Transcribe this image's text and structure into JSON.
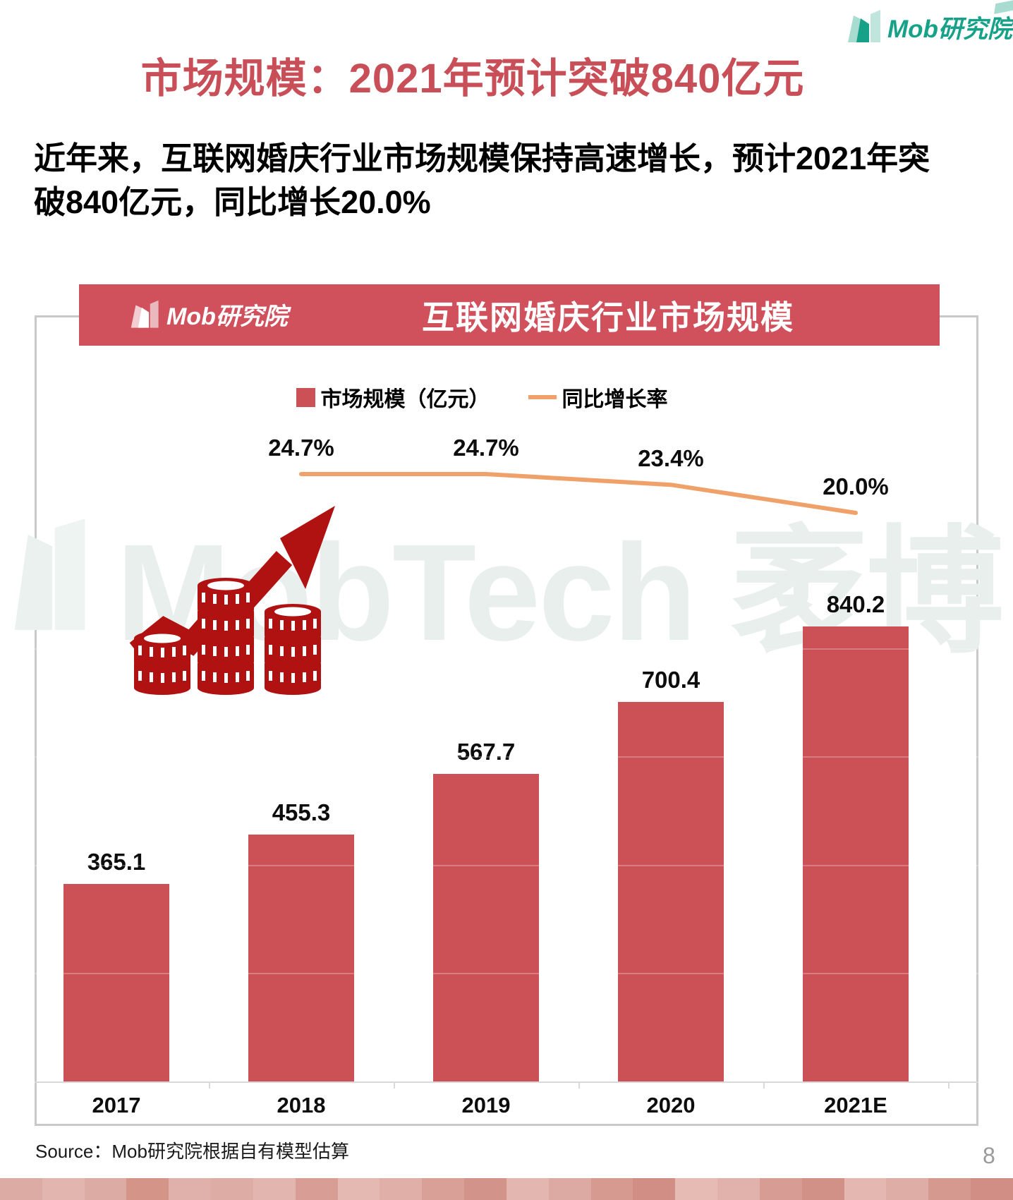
{
  "brand": {
    "name": "Mob研究院",
    "teal": "#17a189",
    "teal_light": "#a8dcd1"
  },
  "title": {
    "text": "市场规模：2021年预计突破840亿元",
    "color": "#c84f58"
  },
  "intro": {
    "text": "近年来，互联网婚庆行业市场规模保持高速增长，预计2021年突破840亿元，同比增长20.0%"
  },
  "chart": {
    "header_title": "互联网婚庆行业市场规模",
    "header_bg": "#d0515c",
    "legend": [
      {
        "label": "市场规模（亿元）",
        "swatch_color": "#cc5157",
        "type": "bar"
      },
      {
        "label": "同比增长率",
        "swatch_color": "#f0a169",
        "type": "line"
      }
    ]
  },
  "chart_data": {
    "type": "combo",
    "categories": [
      "2017",
      "2018",
      "2019",
      "2020",
      "2021E"
    ],
    "series": [
      {
        "name": "市场规模（亿元）",
        "type": "bar",
        "color": "#cc5157",
        "values": [
          365.1,
          455.3,
          567.7,
          700.4,
          840.2
        ]
      },
      {
        "name": "同比增长率",
        "type": "line",
        "color": "#f0a169",
        "unit": "%",
        "values": [
          null,
          24.7,
          24.7,
          23.4,
          20.0
        ]
      }
    ],
    "value_labels_bar": [
      "365.1",
      "455.3",
      "567.7",
      "700.4",
      "840.2"
    ],
    "value_labels_line": [
      "24.7%",
      "24.7%",
      "23.4%",
      "20.0%"
    ],
    "title": "互联网婚庆行业市场规模",
    "xlabel": "",
    "ylabel": "",
    "ylim": [
      0,
      900
    ],
    "grid": false,
    "legend_position": "top"
  },
  "watermark": {
    "text": "MobTech 袤博",
    "color": "#e8efec"
  },
  "clipart": {
    "name": "growth-arrow-with-coin-stacks",
    "color": "#b01111"
  },
  "footer": {
    "source": "Source：Mob研究院根据自有模型估算",
    "page_number": "8",
    "strip_colors": [
      "#dcaba4",
      "#e2b5ae",
      "#dcaba4",
      "#d49488",
      "#e0b1aa",
      "#ddaca5",
      "#e2b5ae",
      "#d89e95",
      "#e4b9b2",
      "#dfafa8",
      "#d8a097",
      "#d2938a",
      "#e3b7b0",
      "#dcaaa2",
      "#d69a90",
      "#d08e84",
      "#e5bbb4",
      "#e0b2ab",
      "#d79c93",
      "#d19187",
      "#e4b8b1",
      "#deaea6",
      "#d69990",
      "#d08e84"
    ]
  }
}
